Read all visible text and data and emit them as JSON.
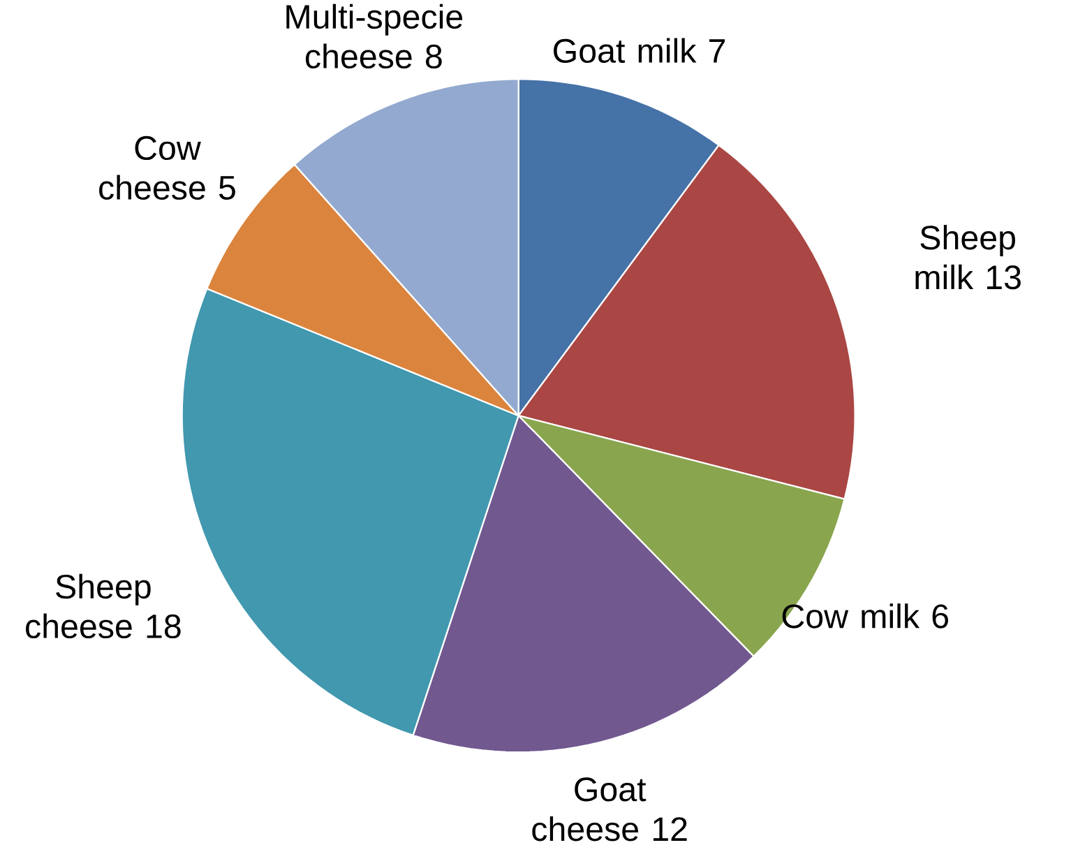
{
  "chart_data": {
    "type": "pie",
    "categories": [
      "Goat milk",
      "Sheep milk",
      "Cow milk",
      "Goat cheese",
      "Sheep cheese",
      "Cow cheese",
      "Multi-specie cheese"
    ],
    "values": [
      7,
      13,
      6,
      12,
      18,
      5,
      8
    ],
    "colors": [
      "#4572a7",
      "#aa4643",
      "#89a54e",
      "#71588f",
      "#4198af",
      "#db843d",
      "#93a9cf"
    ],
    "data_labels": true
  }
}
